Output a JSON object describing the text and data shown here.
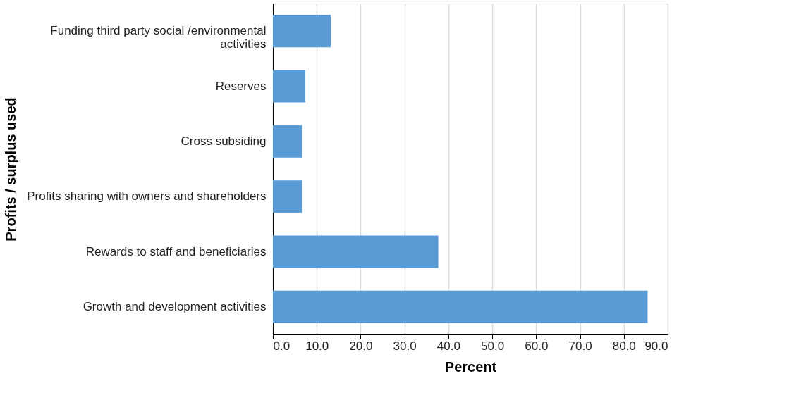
{
  "chart_data": {
    "type": "bar",
    "orientation": "horizontal",
    "xlabel": "Percent",
    "ylabel": "Profits / surplus used",
    "categories": [
      "Funding third party social /environmental activities",
      "Reserves",
      "Cross subsiding",
      "Profits sharing with owners and shareholders",
      "Rewards to staff and beneficiaries",
      "Growth and development activities"
    ],
    "values": [
      13.2,
      7.4,
      6.6,
      6.6,
      37.7,
      85.4
    ],
    "color": "#5b9bd5",
    "xlim": [
      0,
      90
    ],
    "xticks": [
      {
        "value": 0,
        "label": "0.0"
      },
      {
        "value": 10,
        "label": "10.0"
      },
      {
        "value": 20,
        "label": "20.0"
      },
      {
        "value": 30,
        "label": "30.0"
      },
      {
        "value": 40,
        "label": "40.0"
      },
      {
        "value": 50,
        "label": "50.0"
      },
      {
        "value": 60,
        "label": "60.0"
      },
      {
        "value": 70,
        "label": "70.0"
      },
      {
        "value": 80,
        "label": "80.0"
      },
      {
        "value": 90,
        "label": "90.0"
      }
    ],
    "grid": "x"
  }
}
